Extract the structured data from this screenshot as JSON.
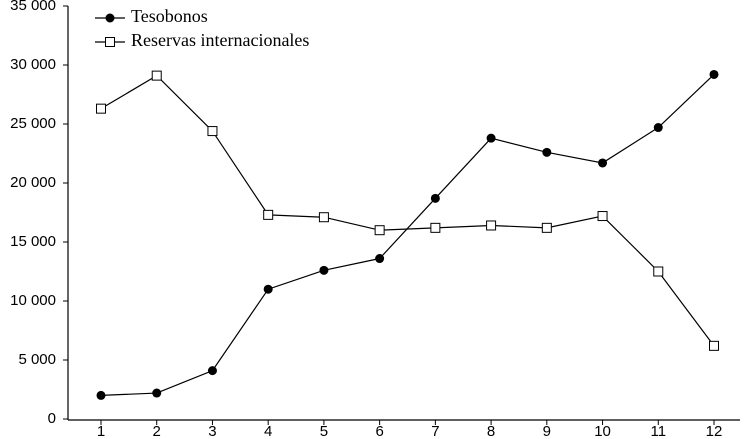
{
  "chart_data": {
    "type": "line",
    "categories": [
      "1",
      "2",
      "3",
      "4",
      "5",
      "6",
      "7",
      "8",
      "9",
      "10",
      "11",
      "12"
    ],
    "series": [
      {
        "name": "Tesobonos",
        "color": "#000000",
        "marker": "filled-circle",
        "values": [
          2000,
          2200,
          4100,
          11000,
          12600,
          13600,
          18700,
          23800,
          22600,
          21700,
          24700,
          29200
        ]
      },
      {
        "name": "Reservas internacionales",
        "color": "#000000",
        "marker": "open-square",
        "values": [
          26300,
          29100,
          24400,
          17300,
          17100,
          16000,
          16200,
          16400,
          16200,
          17200,
          12500,
          6200
        ]
      }
    ],
    "ylim": [
      0,
      35000
    ],
    "yticks": [
      0,
      {
        "value": 5000,
        "label": "5 000"
      },
      {
        "value": 10000,
        "label": "10 000"
      },
      {
        "value": 15000,
        "label": "15 000"
      },
      {
        "value": 20000,
        "label": "20 000"
      },
      {
        "value": 25000,
        "label": "25 000"
      },
      {
        "value": 30000,
        "label": "30 000"
      },
      {
        "value": 35000,
        "label": "35 000"
      }
    ],
    "legend": "upper left",
    "grid": false
  }
}
